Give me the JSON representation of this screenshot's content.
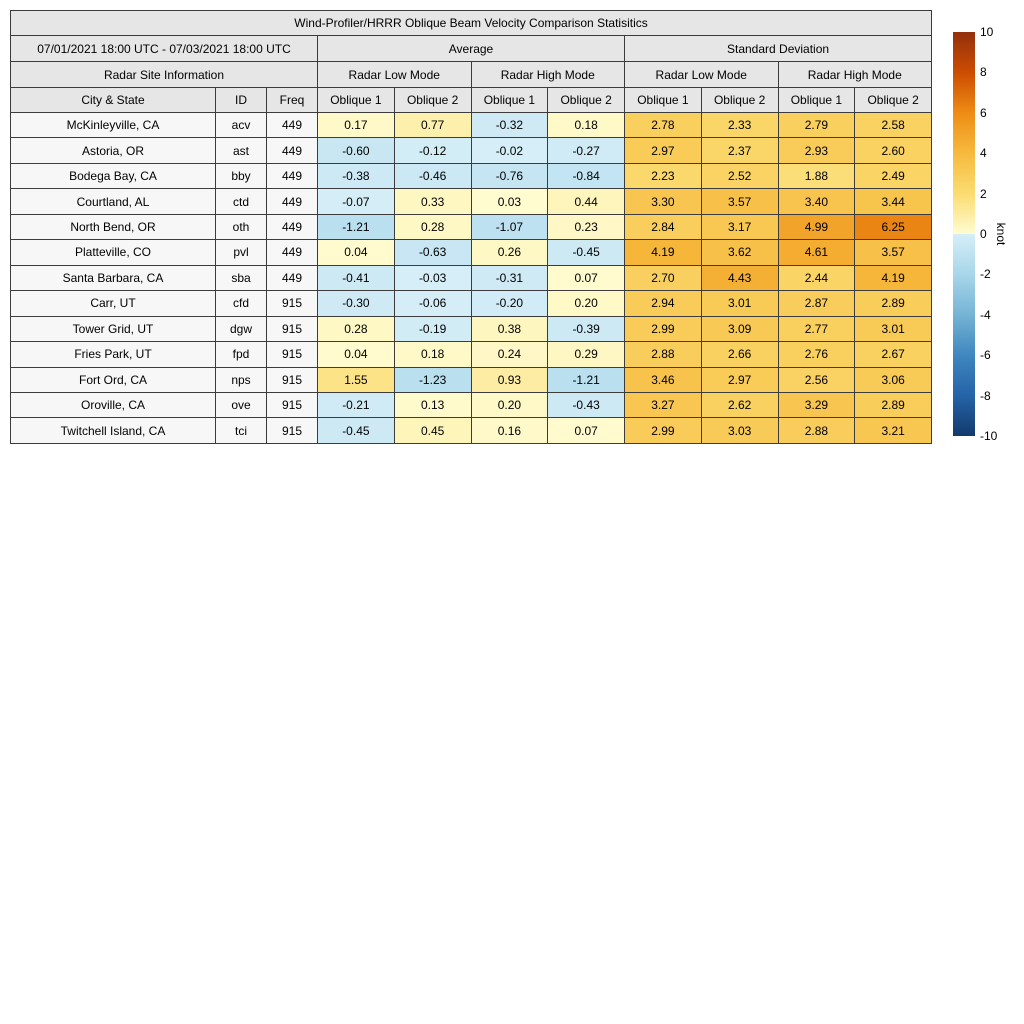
{
  "chart_data": {
    "type": "table",
    "title": "Wind-Profiler/HRRR Oblique Beam Velocity Comparison Statisitics",
    "date_range": "07/01/2021 18:00 UTC - 07/03/2021 18:00 UTC",
    "column_groups": [
      "Average",
      "Standard Deviation"
    ],
    "site_info_label": "Radar Site Information",
    "mode_headers": [
      "Radar Low Mode",
      "Radar High Mode",
      "Radar Low Mode",
      "Radar High Mode"
    ],
    "columns": [
      "City & State",
      "ID",
      "Freq",
      "Oblique 1",
      "Oblique 2",
      "Oblique 1",
      "Oblique 2",
      "Oblique 1",
      "Oblique 2",
      "Oblique 1",
      "Oblique 2"
    ],
    "rows": [
      {
        "city": "McKinleyville, CA",
        "id": "acv",
        "freq": "449",
        "values": [
          "0.17",
          "0.77",
          "-0.32",
          "0.18",
          "2.78",
          "2.33",
          "2.79",
          "2.58"
        ]
      },
      {
        "city": "Astoria, OR",
        "id": "ast",
        "freq": "449",
        "values": [
          "-0.60",
          "-0.12",
          "-0.02",
          "-0.27",
          "2.97",
          "2.37",
          "2.93",
          "2.60"
        ]
      },
      {
        "city": "Bodega Bay, CA",
        "id": "bby",
        "freq": "449",
        "values": [
          "-0.38",
          "-0.46",
          "-0.76",
          "-0.84",
          "2.23",
          "2.52",
          "1.88",
          "2.49"
        ]
      },
      {
        "city": "Courtland, AL",
        "id": "ctd",
        "freq": "449",
        "values": [
          "-0.07",
          "0.33",
          "0.03",
          "0.44",
          "3.30",
          "3.57",
          "3.40",
          "3.44"
        ]
      },
      {
        "city": "North Bend, OR",
        "id": "oth",
        "freq": "449",
        "values": [
          "-1.21",
          "0.28",
          "-1.07",
          "0.23",
          "2.84",
          "3.17",
          "4.99",
          "6.25"
        ]
      },
      {
        "city": "Platteville, CO",
        "id": "pvl",
        "freq": "449",
        "values": [
          "0.04",
          "-0.63",
          "0.26",
          "-0.45",
          "4.19",
          "3.62",
          "4.61",
          "3.57"
        ]
      },
      {
        "city": "Santa Barbara, CA",
        "id": "sba",
        "freq": "449",
        "values": [
          "-0.41",
          "-0.03",
          "-0.31",
          "0.07",
          "2.70",
          "4.43",
          "2.44",
          "4.19"
        ]
      },
      {
        "city": "Carr, UT",
        "id": "cfd",
        "freq": "915",
        "values": [
          "-0.30",
          "-0.06",
          "-0.20",
          "0.20",
          "2.94",
          "3.01",
          "2.87",
          "2.89"
        ]
      },
      {
        "city": "Tower Grid, UT",
        "id": "dgw",
        "freq": "915",
        "values": [
          "0.28",
          "-0.19",
          "0.38",
          "-0.39",
          "2.99",
          "3.09",
          "2.77",
          "3.01"
        ]
      },
      {
        "city": "Fries Park, UT",
        "id": "fpd",
        "freq": "915",
        "values": [
          "0.04",
          "0.18",
          "0.24",
          "0.29",
          "2.88",
          "2.66",
          "2.76",
          "2.67"
        ]
      },
      {
        "city": "Fort Ord, CA",
        "id": "nps",
        "freq": "915",
        "values": [
          "1.55",
          "-1.23",
          "0.93",
          "-1.21",
          "3.46",
          "2.97",
          "2.56",
          "3.06"
        ]
      },
      {
        "city": "Oroville, CA",
        "id": "ove",
        "freq": "915",
        "values": [
          "-0.21",
          "0.13",
          "0.20",
          "-0.43",
          "3.27",
          "2.62",
          "3.29",
          "2.89"
        ]
      },
      {
        "city": "Twitchell Island, CA",
        "id": "tci",
        "freq": "915",
        "values": [
          "-0.45",
          "0.45",
          "0.16",
          "0.07",
          "2.99",
          "3.03",
          "2.88",
          "3.21"
        ]
      }
    ]
  },
  "colorbar": {
    "label": "knot",
    "min": -10,
    "max": 10,
    "ticks": [
      10,
      8,
      6,
      4,
      2,
      0,
      -2,
      -4,
      -6,
      -8,
      -10
    ],
    "colormap": [
      {
        "v": -10,
        "c": "#123a6d"
      },
      {
        "v": -8,
        "c": "#2563a8"
      },
      {
        "v": -6,
        "c": "#3f87bf"
      },
      {
        "v": -4,
        "c": "#76b4d5"
      },
      {
        "v": -2,
        "c": "#a8d6ea"
      },
      {
        "v": -0.001,
        "c": "#d6eef7"
      },
      {
        "v": 0.001,
        "c": "#fffcd1"
      },
      {
        "v": 2,
        "c": "#fbdc71"
      },
      {
        "v": 4,
        "c": "#f6ba3e"
      },
      {
        "v": 6,
        "c": "#ee8c14"
      },
      {
        "v": 8,
        "c": "#cc4c02"
      },
      {
        "v": 10,
        "c": "#93300c"
      }
    ]
  },
  "style": {
    "header_bg": "#e6e6e6",
    "row_bg": "#f7f7f7",
    "border_color": "#3c3c3c"
  }
}
